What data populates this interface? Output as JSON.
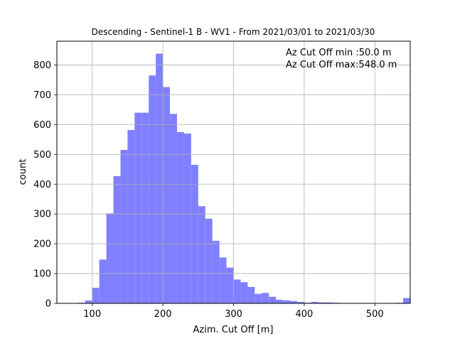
{
  "chart_data": {
    "type": "bar",
    "title": "Descending - Sentinel-1 B - WV1 - From 2021/03/01 to 2021/03/30",
    "xlabel": "Azim. Cut Off [m]",
    "ylabel": "count",
    "xlim": [
      50,
      550
    ],
    "ylim": [
      0,
      880
    ],
    "xticks": [
      100,
      200,
      300,
      400,
      500
    ],
    "yticks": [
      0,
      100,
      200,
      300,
      400,
      500,
      600,
      700,
      800
    ],
    "grid": true,
    "bar_color": "#8080ff",
    "bin_width": 10,
    "bin_starts": [
      60,
      70,
      80,
      90,
      100,
      110,
      120,
      130,
      140,
      150,
      160,
      170,
      180,
      190,
      200,
      210,
      220,
      230,
      240,
      250,
      260,
      270,
      280,
      290,
      300,
      310,
      320,
      330,
      340,
      350,
      360,
      370,
      380,
      390,
      400,
      410,
      420,
      430,
      440,
      450,
      460,
      470,
      480,
      490,
      500,
      510,
      520,
      530,
      540
    ],
    "values": [
      1,
      0,
      2,
      10,
      52,
      147,
      302,
      427,
      515,
      582,
      640,
      640,
      765,
      838,
      726,
      636,
      575,
      570,
      465,
      326,
      284,
      210,
      154,
      120,
      80,
      71,
      55,
      32,
      35,
      22,
      12,
      10,
      8,
      5,
      2,
      5,
      3,
      3,
      2,
      0,
      0,
      0,
      0,
      0,
      0,
      0,
      0,
      2,
      18
    ],
    "annotations": [
      "Az Cut Off min :50.0 m",
      "Az Cut Off max:548.0 m"
    ]
  }
}
